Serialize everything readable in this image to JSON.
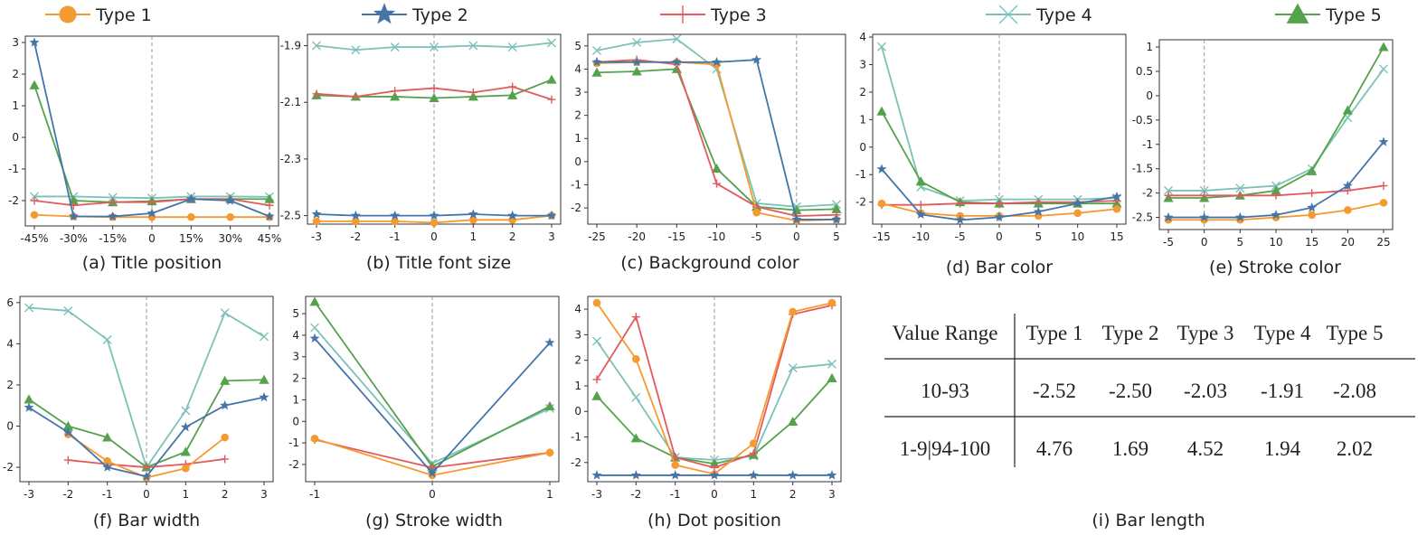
{
  "legend": {
    "items": [
      {
        "label": "Type 1",
        "marker": "circle",
        "color": "#f59a30"
      },
      {
        "label": "Type 2",
        "marker": "star",
        "color": "#4575a8"
      },
      {
        "label": "Type 3",
        "marker": "plus",
        "color": "#e25a5e"
      },
      {
        "label": "Type 4",
        "marker": "x",
        "color": "#7cc1b8"
      },
      {
        "label": "Type 5",
        "marker": "triangle",
        "color": "#54a24b"
      }
    ]
  },
  "chart_data": [
    {
      "type": "line",
      "caption": "(a) Title position",
      "x": [
        -45,
        -30,
        -15,
        0,
        15,
        30,
        45
      ],
      "xticklabels": [
        "-45%",
        "-30%",
        "-15%",
        "0",
        "15%",
        "30%",
        "45%"
      ],
      "ylim": [
        -2.8,
        3.2
      ],
      "yticks": [
        -2,
        -1,
        0,
        1,
        2,
        3
      ],
      "yticklabels": [
        "-2",
        "-1",
        "0",
        "1",
        "2",
        "3"
      ],
      "series": [
        {
          "name": "Type 1",
          "values": [
            -2.45,
            -2.5,
            -2.52,
            -2.52,
            -2.52,
            -2.52,
            -2.52
          ]
        },
        {
          "name": "Type 2",
          "values": [
            3.0,
            -2.5,
            -2.5,
            -2.4,
            -1.95,
            -2.0,
            -2.5
          ]
        },
        {
          "name": "Type 3",
          "values": [
            -2.0,
            -2.15,
            -2.05,
            -2.05,
            -1.95,
            -1.95,
            -2.15
          ]
        },
        {
          "name": "Type 4",
          "values": [
            -1.87,
            -1.87,
            -1.9,
            -1.92,
            -1.87,
            -1.87,
            -1.88
          ]
        },
        {
          "name": "Type 5",
          "values": [
            1.65,
            -2.0,
            -2.05,
            -2.02,
            -1.95,
            -1.95,
            -1.95
          ]
        }
      ]
    },
    {
      "type": "line",
      "caption": "(b) Title font size",
      "x": [
        -3,
        -2,
        -1,
        0,
        1,
        2,
        3
      ],
      "xticklabels": [
        "-3",
        "-2",
        "-1",
        "0",
        "1",
        "2",
        "3"
      ],
      "ylim": [
        -2.53,
        -1.86
      ],
      "yticks": [
        -2.5,
        -2.3,
        -2.1,
        -1.9
      ],
      "yticklabels": [
        "-2.5",
        "-2.3",
        "-2.1",
        "-1.9"
      ],
      "series": [
        {
          "name": "Type 1",
          "values": [
            -2.52,
            -2.52,
            -2.52,
            -2.525,
            -2.515,
            -2.515,
            -2.5
          ]
        },
        {
          "name": "Type 2",
          "values": [
            -2.495,
            -2.5,
            -2.5,
            -2.5,
            -2.495,
            -2.5,
            -2.5
          ]
        },
        {
          "name": "Type 3",
          "values": [
            -2.07,
            -2.08,
            -2.06,
            -2.05,
            -2.065,
            -2.045,
            -2.09
          ]
        },
        {
          "name": "Type 4",
          "values": [
            -1.9,
            -1.915,
            -1.905,
            -1.905,
            -1.9,
            -1.905,
            -1.89
          ]
        },
        {
          "name": "Type 5",
          "values": [
            -2.075,
            -2.08,
            -2.08,
            -2.085,
            -2.08,
            -2.075,
            -2.02
          ]
        }
      ]
    },
    {
      "type": "line",
      "caption": "(c) Background color",
      "x": [
        -25,
        -20,
        -15,
        -10,
        -5,
        0,
        5
      ],
      "xticklabels": [
        "-25",
        "-20",
        "-15",
        "-10",
        "-5",
        "0",
        "5"
      ],
      "ylim": [
        -2.7,
        5.5
      ],
      "yticks": [
        -2,
        -1,
        0,
        1,
        2,
        3,
        4,
        5
      ],
      "yticklabels": [
        "-2",
        "-1",
        "0",
        "1",
        "2",
        "3",
        "4",
        "5"
      ],
      "series": [
        {
          "name": "Type 1",
          "values": [
            4.25,
            4.3,
            4.3,
            4.2,
            -2.2,
            -2.55,
            -2.5
          ]
        },
        {
          "name": "Type 2",
          "values": [
            4.3,
            4.3,
            4.3,
            4.3,
            4.4,
            -2.5,
            -2.5
          ]
        },
        {
          "name": "Type 3",
          "values": [
            4.3,
            4.4,
            4.2,
            -0.95,
            -1.95,
            -2.35,
            -2.3
          ]
        },
        {
          "name": "Type 4",
          "values": [
            4.8,
            5.15,
            5.3,
            4.0,
            -1.8,
            -1.95,
            -1.85
          ]
        },
        {
          "name": "Type 5",
          "values": [
            3.85,
            3.9,
            4.0,
            -0.3,
            -1.95,
            -2.1,
            -2.05
          ]
        }
      ]
    },
    {
      "type": "line",
      "caption": "(d) Bar color",
      "x": [
        -15,
        -10,
        -5,
        0,
        5,
        10,
        15
      ],
      "xticklabels": [
        "-15",
        "-10",
        "-5",
        "0",
        "5",
        "10",
        "15"
      ],
      "ylim": [
        -2.8,
        4.1
      ],
      "yticks": [
        -2,
        -1,
        0,
        1,
        2,
        3,
        4
      ],
      "yticklabels": [
        "-2",
        "-1",
        "0",
        "1",
        "2",
        "3",
        "4"
      ],
      "series": [
        {
          "name": "Type 1",
          "values": [
            -2.05,
            -2.4,
            -2.5,
            -2.5,
            -2.5,
            -2.4,
            -2.25
          ]
        },
        {
          "name": "Type 2",
          "values": [
            -0.8,
            -2.45,
            -2.65,
            -2.55,
            -2.35,
            -2.05,
            -1.8
          ]
        },
        {
          "name": "Type 3",
          "values": [
            -2.1,
            -2.1,
            -2.05,
            -2.05,
            -2.0,
            -2.0,
            -1.95
          ]
        },
        {
          "name": "Type 4",
          "values": [
            3.65,
            -1.45,
            -1.95,
            -1.9,
            -1.9,
            -1.9,
            -1.85
          ]
        },
        {
          "name": "Type 5",
          "values": [
            1.3,
            -1.25,
            -2.0,
            -2.05,
            -2.05,
            -2.05,
            -2.05
          ]
        }
      ]
    },
    {
      "type": "line",
      "caption": "(e) Stroke color",
      "x": [
        -5,
        0,
        5,
        10,
        15,
        20,
        25
      ],
      "xticklabels": [
        "-5",
        "0",
        "5",
        "10",
        "15",
        "20",
        "25"
      ],
      "ylim": [
        -2.75,
        1.15
      ],
      "yticks": [
        -2.5,
        -2,
        -1.5,
        -1,
        -0.5,
        0,
        0.5,
        1
      ],
      "yticklabels": [
        "-2.5",
        "-2",
        "-1.5",
        "-1",
        "-0.5",
        "0",
        "0.5",
        "1"
      ],
      "series": [
        {
          "name": "Type 1",
          "values": [
            -2.55,
            -2.55,
            -2.55,
            -2.5,
            -2.45,
            -2.35,
            -2.2
          ]
        },
        {
          "name": "Type 2",
          "values": [
            -2.5,
            -2.5,
            -2.5,
            -2.45,
            -2.3,
            -1.85,
            -0.95
          ]
        },
        {
          "name": "Type 3",
          "values": [
            -2.05,
            -2.05,
            -2.05,
            -2.05,
            -2.0,
            -1.95,
            -1.85
          ]
        },
        {
          "name": "Type 4",
          "values": [
            -1.95,
            -1.95,
            -1.9,
            -1.85,
            -1.5,
            -0.45,
            0.55
          ]
        },
        {
          "name": "Type 5",
          "values": [
            -2.1,
            -2.1,
            -2.05,
            -1.95,
            -1.55,
            -0.3,
            1.0
          ]
        }
      ]
    },
    {
      "type": "line",
      "caption": "(f) Bar width",
      "x": [
        -3,
        -2,
        -1,
        0,
        1,
        2,
        3
      ],
      "xticklabels": [
        "-3",
        "-2",
        "-1",
        "0",
        "1",
        "2",
        "3"
      ],
      "ylim": [
        -2.7,
        6.3
      ],
      "yticks": [
        -2,
        0,
        2,
        4,
        6
      ],
      "yticklabels": [
        "-2",
        "0",
        "2",
        "4",
        "6"
      ],
      "series": [
        {
          "name": "Type 1",
          "values": [
            null,
            -0.4,
            -1.7,
            -2.5,
            -2.05,
            -0.55,
            null
          ]
        },
        {
          "name": "Type 2",
          "values": [
            0.9,
            -0.3,
            -2.0,
            -2.45,
            -0.05,
            1.0,
            1.4
          ]
        },
        {
          "name": "Type 3",
          "values": [
            null,
            -1.65,
            -1.85,
            -2.0,
            -1.85,
            -1.6,
            null
          ]
        },
        {
          "name": "Type 4",
          "values": [
            5.75,
            5.6,
            4.2,
            -2.0,
            0.75,
            5.5,
            4.35
          ]
        },
        {
          "name": "Type 5",
          "values": [
            1.3,
            0.0,
            -0.55,
            -2.0,
            -1.25,
            2.2,
            2.25
          ]
        }
      ]
    },
    {
      "type": "line",
      "caption": "(g) Stroke width",
      "x": [
        -1,
        0,
        1
      ],
      "xticklabels": [
        "-1",
        "0",
        "1"
      ],
      "ylim": [
        -2.8,
        5.8
      ],
      "yticks": [
        -2,
        -1,
        0,
        1,
        2,
        3,
        4,
        5
      ],
      "yticklabels": [
        "-2",
        "-1",
        "0",
        "1",
        "2",
        "3",
        "4",
        "5"
      ],
      "series": [
        {
          "name": "Type 1",
          "values": [
            -0.8,
            -2.5,
            -1.45
          ]
        },
        {
          "name": "Type 2",
          "values": [
            3.85,
            -2.4,
            3.65
          ]
        },
        {
          "name": "Type 3",
          "values": [
            -0.85,
            -2.15,
            -1.45
          ]
        },
        {
          "name": "Type 4",
          "values": [
            4.35,
            -1.95,
            0.6
          ]
        },
        {
          "name": "Type 5",
          "values": [
            5.55,
            -2.1,
            0.7
          ]
        }
      ]
    },
    {
      "type": "line",
      "caption": "(h) Dot position",
      "x": [
        -3,
        -2,
        -1,
        0,
        1,
        2,
        3
      ],
      "xticklabels": [
        "-3",
        "-2",
        "-1",
        "0",
        "1",
        "2",
        "3"
      ],
      "ylim": [
        -2.75,
        4.5
      ],
      "yticks": [
        -2,
        -1,
        0,
        1,
        2,
        3,
        4
      ],
      "yticklabels": [
        "-2",
        "-1",
        "0",
        "1",
        "2",
        "3",
        "4"
      ],
      "series": [
        {
          "name": "Type 1",
          "values": [
            4.25,
            2.05,
            -2.1,
            -2.45,
            -1.25,
            3.9,
            4.25
          ]
        },
        {
          "name": "Type 2",
          "values": [
            -2.5,
            -2.5,
            -2.5,
            -2.5,
            -2.5,
            -2.5,
            -2.5
          ]
        },
        {
          "name": "Type 3",
          "values": [
            1.25,
            3.7,
            -1.8,
            -2.2,
            -1.65,
            3.8,
            4.15
          ]
        },
        {
          "name": "Type 4",
          "values": [
            2.75,
            0.55,
            -1.8,
            -1.9,
            -1.75,
            1.7,
            1.85
          ]
        },
        {
          "name": "Type 5",
          "values": [
            0.6,
            -1.05,
            -1.8,
            -2.05,
            -1.7,
            -0.4,
            1.3
          ]
        }
      ]
    },
    {
      "type": "table",
      "caption": "(i) Bar length",
      "columns": [
        "Value Range",
        "Type 1",
        "Type 2",
        "Type 3",
        "Type 4",
        "Type 5"
      ],
      "rows": [
        [
          "10-93",
          "-2.52",
          "-2.50",
          "-2.03",
          "-1.91",
          "-2.08"
        ],
        [
          "1-9|94-100",
          "4.76",
          "1.69",
          "4.52",
          "1.94",
          "2.02"
        ]
      ]
    }
  ]
}
